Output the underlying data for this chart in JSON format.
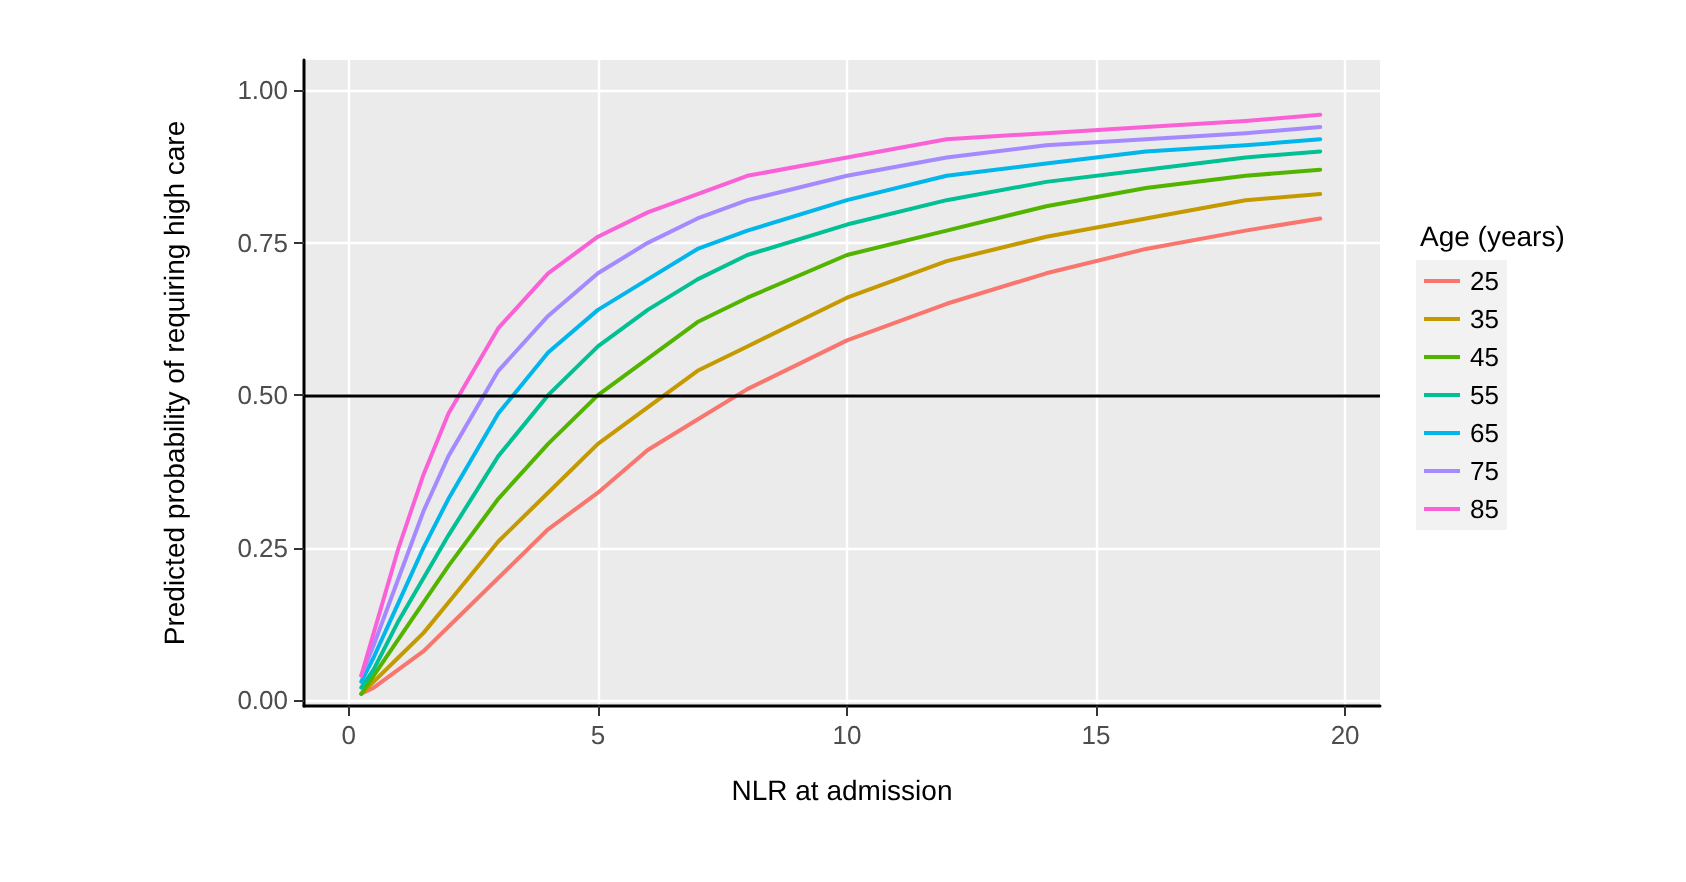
{
  "chart_data": {
    "type": "line",
    "xlabel": "NLR at admission",
    "ylabel": "Predicted probability of requiring high care",
    "legend_title": "Age (years)",
    "x": [
      0.25,
      0.5,
      1,
      1.5,
      2,
      3,
      4,
      5,
      6,
      7,
      8,
      10,
      12,
      14,
      16,
      18,
      19.5
    ],
    "series": [
      {
        "name": "25",
        "color": "#f8766d",
        "values": [
          0.01,
          0.02,
          0.05,
          0.08,
          0.12,
          0.2,
          0.28,
          0.34,
          0.41,
          0.46,
          0.51,
          0.59,
          0.65,
          0.7,
          0.74,
          0.77,
          0.79
        ]
      },
      {
        "name": "35",
        "color": "#c49a00",
        "values": [
          0.01,
          0.03,
          0.07,
          0.11,
          0.16,
          0.26,
          0.34,
          0.42,
          0.48,
          0.54,
          0.58,
          0.66,
          0.72,
          0.76,
          0.79,
          0.82,
          0.83
        ]
      },
      {
        "name": "45",
        "color": "#53b400",
        "values": [
          0.01,
          0.04,
          0.1,
          0.16,
          0.22,
          0.33,
          0.42,
          0.5,
          0.56,
          0.62,
          0.66,
          0.73,
          0.77,
          0.81,
          0.84,
          0.86,
          0.87
        ]
      },
      {
        "name": "55",
        "color": "#00c094",
        "values": [
          0.02,
          0.05,
          0.13,
          0.2,
          0.27,
          0.4,
          0.5,
          0.58,
          0.64,
          0.69,
          0.73,
          0.78,
          0.82,
          0.85,
          0.87,
          0.89,
          0.9
        ]
      },
      {
        "name": "65",
        "color": "#00b6eb",
        "values": [
          0.03,
          0.07,
          0.16,
          0.25,
          0.33,
          0.47,
          0.57,
          0.64,
          0.69,
          0.74,
          0.77,
          0.82,
          0.86,
          0.88,
          0.9,
          0.91,
          0.92
        ]
      },
      {
        "name": "75",
        "color": "#a58aff",
        "values": [
          0.04,
          0.09,
          0.2,
          0.31,
          0.4,
          0.54,
          0.63,
          0.7,
          0.75,
          0.79,
          0.82,
          0.86,
          0.89,
          0.91,
          0.92,
          0.93,
          0.94
        ]
      },
      {
        "name": "85",
        "color": "#fb61d7",
        "values": [
          0.04,
          0.11,
          0.25,
          0.37,
          0.47,
          0.61,
          0.7,
          0.76,
          0.8,
          0.83,
          0.86,
          0.89,
          0.92,
          0.93,
          0.94,
          0.95,
          0.96
        ]
      }
    ],
    "xlim": [
      -0.9,
      20.7
    ],
    "xticks": [
      0,
      5,
      10,
      15,
      20
    ],
    "ylim": [
      -0.01,
      1.05
    ],
    "yticks": [
      {
        "value": 0,
        "label": "0.00"
      },
      {
        "value": 0.25,
        "label": "0.25"
      },
      {
        "value": 0.5,
        "label": "0.50"
      },
      {
        "value": 0.75,
        "label": "0.75"
      },
      {
        "value": 1,
        "label": "1.00"
      }
    ],
    "ref_lines": [
      {
        "axis": "y",
        "value": 0.5,
        "color": "#000000"
      }
    ],
    "grid": true,
    "legend": "right",
    "marker": "none",
    "line_style": "solid"
  }
}
